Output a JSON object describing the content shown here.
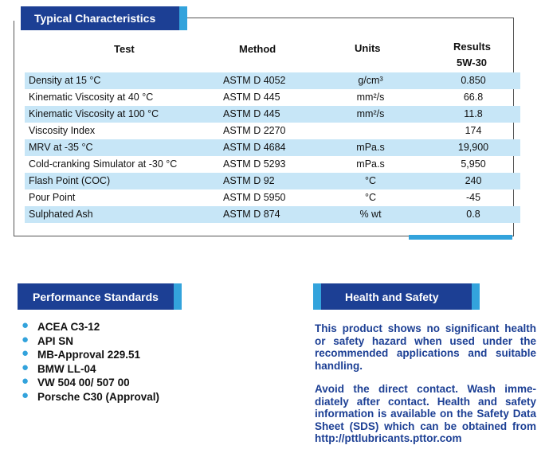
{
  "typical": {
    "title": "Typical Characteristics",
    "headers": {
      "test": "Test",
      "method": "Method",
      "units": "Units",
      "results": "Results",
      "grade": "5W-30"
    },
    "rows": [
      {
        "test": "Density at 15 °C",
        "method": "ASTM D 4052",
        "units": "g/cm³",
        "result": "0.850"
      },
      {
        "test": "Kinematic Viscosity at 40 °C",
        "method": "ASTM D 445",
        "units": "mm²/s",
        "result": "66.8"
      },
      {
        "test": "Kinematic Viscosity at 100 °C",
        "method": "ASTM D 445",
        "units": "mm²/s",
        "result": "11.8"
      },
      {
        "test": "Viscosity Index",
        "method": "ASTM D 2270",
        "units": "",
        "result": "174"
      },
      {
        "test": "MRV at -35 °C",
        "method": "ASTM D 4684",
        "units": "mPa.s",
        "result": "19,900"
      },
      {
        "test": "Cold-cranking Simulator at -30 °C",
        "method": "ASTM D 5293",
        "units": "mPa.s",
        "result": "5,950"
      },
      {
        "test": "Flash Point (COC)",
        "method": "ASTM D 92",
        "units": "°C",
        "result": "240"
      },
      {
        "test": "Pour Point",
        "method": "ASTM D 5950",
        "units": "°C",
        "result": "-45"
      },
      {
        "test": "Sulphated Ash",
        "method": "ASTM D 874",
        "units": "% wt",
        "result": "0.8"
      }
    ]
  },
  "performance": {
    "title": "Performance Standards",
    "items": [
      "ACEA C3-12",
      "API SN",
      "MB-Approval 229.51",
      "BMW LL-04",
      "VW 504 00/ 507 00",
      "Porsche C30 (Approval)"
    ]
  },
  "health": {
    "title": "Health and Safety",
    "paragraph1": "This product shows no significant health or safety hazard when used under the recommended applications and suitable handling.",
    "paragraph2": "Avoid the direct contact. Wash imme-diately after contact. Health and safety information is available on the Safety Data Sheet (SDS) which can be obtained from http://pttlubricants.pttor.com"
  },
  "colors": {
    "brand_blue": "#1c3f94",
    "accent_blue": "#33a3dc",
    "row_shade": "#c7e6f7"
  },
  "icons": {
    "bullet": "bullet-dot-icon"
  }
}
